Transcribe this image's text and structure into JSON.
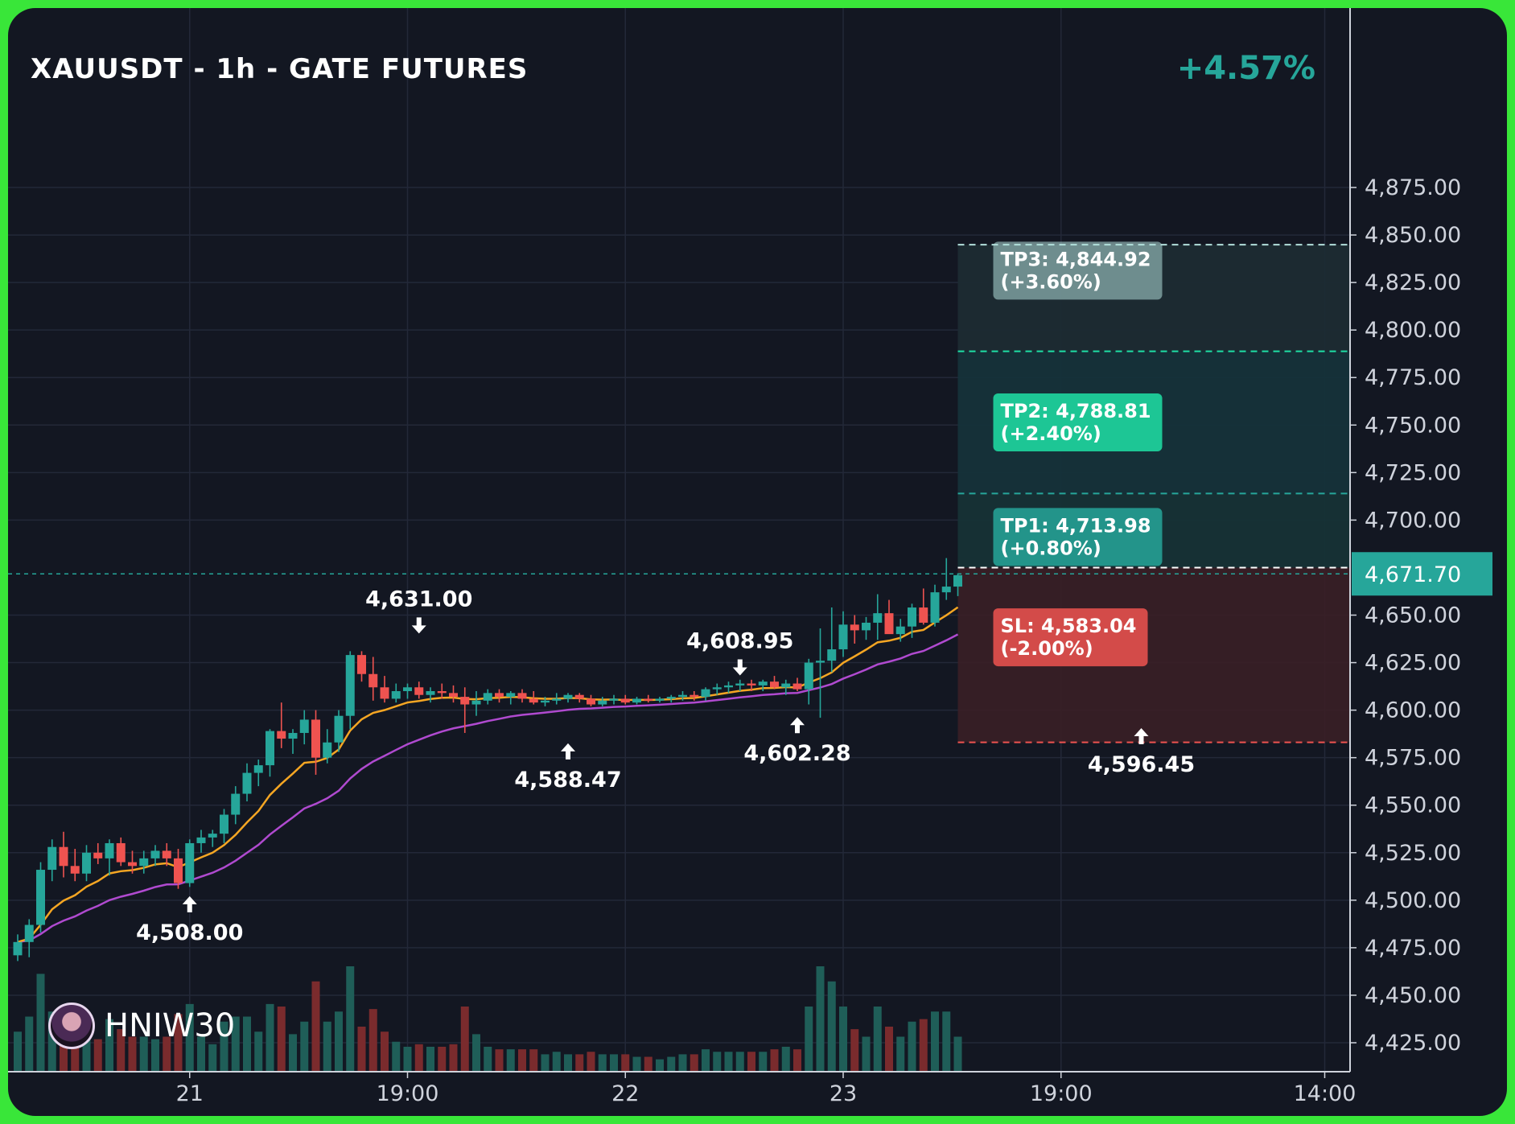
{
  "header": {
    "title": "XAUUSDT - 1h - GATE FUTURES",
    "change_pct": "+4.57%"
  },
  "brand": {
    "name": "HNIW30",
    "avatar_icon": "avatar-icon"
  },
  "colors": {
    "background": "#131722",
    "up": "#26a69a",
    "down": "#ef5350",
    "ema_fast": "#f5a623",
    "ema_slow": "#b04ad0",
    "frame": "#39e639"
  },
  "chart_data": {
    "type": "candlestick",
    "symbol": "XAUUSDT",
    "timeframe": "1h",
    "exchange": "GATE FUTURES",
    "ylim": [
      4415,
      4880
    ],
    "y_ticks": [
      "4,875.00",
      "4,850.00",
      "4,825.00",
      "4,800.00",
      "4,775.00",
      "4,750.00",
      "4,725.00",
      "4,700.00",
      "4,650.00",
      "4,625.00",
      "4,600.00",
      "4,575.00",
      "4,550.00",
      "4,525.00",
      "4,500.00",
      "4,475.00",
      "4,450.00",
      "4,425.00"
    ],
    "y_tick_values": [
      4875,
      4850,
      4825,
      4800,
      4775,
      4750,
      4725,
      4700,
      4650,
      4625,
      4600,
      4575,
      4550,
      4525,
      4500,
      4475,
      4450,
      4425
    ],
    "x_ticks": [
      {
        "label": "21",
        "bar": 15
      },
      {
        "label": "19:00",
        "bar": 34
      },
      {
        "label": "22",
        "bar": 53
      },
      {
        "label": "23",
        "bar": 72
      },
      {
        "label": "19:00",
        "bar": 91
      },
      {
        "label": "14:00",
        "bar": 114
      }
    ],
    "current_price": {
      "label": "4,671.70",
      "value": 4671.7
    },
    "candles": [
      [
        4471,
        4482,
        4468,
        4478
      ],
      [
        4478,
        4490,
        4470,
        4487
      ],
      [
        4487,
        4520,
        4483,
        4516
      ],
      [
        4516,
        4532,
        4510,
        4528
      ],
      [
        4528,
        4536,
        4512,
        4518
      ],
      [
        4518,
        4527,
        4510,
        4514
      ],
      [
        4514,
        4529,
        4510,
        4525
      ],
      [
        4525,
        4530,
        4519,
        4522
      ],
      [
        4522,
        4532,
        4513,
        4530
      ],
      [
        4530,
        4533,
        4518,
        4520
      ],
      [
        4520,
        4526,
        4514,
        4518
      ],
      [
        4518,
        4526,
        4514,
        4522
      ],
      [
        4522,
        4529,
        4518,
        4526
      ],
      [
        4526,
        4530,
        4518,
        4522
      ],
      [
        4522,
        4527,
        4506,
        4509
      ],
      [
        4509,
        4532,
        4507,
        4530
      ],
      [
        4530,
        4537,
        4525,
        4533
      ],
      [
        4533,
        4537,
        4528,
        4535
      ],
      [
        4535,
        4548,
        4530,
        4545
      ],
      [
        4545,
        4560,
        4540,
        4556
      ],
      [
        4556,
        4572,
        4552,
        4567
      ],
      [
        4567,
        4574,
        4560,
        4571
      ],
      [
        4571,
        4590,
        4565,
        4589
      ],
      [
        4589,
        4604,
        4580,
        4585
      ],
      [
        4585,
        4590,
        4577,
        4588
      ],
      [
        4588,
        4600,
        4582,
        4595
      ],
      [
        4595,
        4600,
        4566,
        4575
      ],
      [
        4575,
        4590,
        4572,
        4583
      ],
      [
        4583,
        4600,
        4578,
        4597
      ],
      [
        4597,
        4631,
        4590,
        4629
      ],
      [
        4629,
        4631,
        4615,
        4619
      ],
      [
        4619,
        4628,
        4605,
        4612
      ],
      [
        4612,
        4618,
        4604,
        4606
      ],
      [
        4606,
        4614,
        4604,
        4610
      ],
      [
        4610,
        4614,
        4606,
        4612
      ],
      [
        4612,
        4615,
        4606,
        4608
      ],
      [
        4608,
        4612,
        4604,
        4610
      ],
      [
        4610,
        4614,
        4606,
        4609
      ],
      [
        4609,
        4613,
        4604,
        4607
      ],
      [
        4607,
        4612,
        4588,
        4603
      ],
      [
        4603,
        4610,
        4597,
        4605
      ],
      [
        4605,
        4611,
        4603,
        4609
      ],
      [
        4609,
        4611,
        4604,
        4607
      ],
      [
        4607,
        4610,
        4603,
        4609
      ],
      [
        4609,
        4611,
        4604,
        4606
      ],
      [
        4606,
        4610,
        4603,
        4604
      ],
      [
        4604,
        4607,
        4602,
        4605
      ],
      [
        4605,
        4609,
        4603,
        4606
      ],
      [
        4606,
        4609,
        4604,
        4608
      ],
      [
        4608,
        4609,
        4604,
        4606
      ],
      [
        4606,
        4608,
        4602,
        4603
      ],
      [
        4603,
        4607,
        4602,
        4605
      ],
      [
        4605,
        4608,
        4603,
        4606
      ],
      [
        4606,
        4608,
        4603,
        4604
      ],
      [
        4604,
        4607,
        4603,
        4606
      ],
      [
        4606,
        4608,
        4604,
        4605
      ],
      [
        4605,
        4607,
        4604,
        4606
      ],
      [
        4606,
        4608,
        4604,
        4607
      ],
      [
        4607,
        4610,
        4605,
        4608
      ],
      [
        4608,
        4610,
        4605,
        4607
      ],
      [
        4607,
        4612,
        4605,
        4611
      ],
      [
        4611,
        4614,
        4608,
        4612
      ],
      [
        4612,
        4615,
        4609,
        4613
      ],
      [
        4613,
        4616,
        4610,
        4614
      ],
      [
        4614,
        4616,
        4610,
        4613
      ],
      [
        4613,
        4616,
        4610,
        4615
      ],
      [
        4615,
        4618,
        4611,
        4612
      ],
      [
        4612,
        4616,
        4608,
        4614
      ],
      [
        4614,
        4617,
        4610,
        4611
      ],
      [
        4611,
        4627,
        4603,
        4625
      ],
      [
        4625,
        4643,
        4596,
        4626
      ],
      [
        4626,
        4654,
        4620,
        4632
      ],
      [
        4632,
        4652,
        4628,
        4645
      ],
      [
        4645,
        4650,
        4635,
        4642
      ],
      [
        4642,
        4649,
        4637,
        4646
      ],
      [
        4646,
        4661,
        4637,
        4651
      ],
      [
        4651,
        4658,
        4642,
        4640
      ],
      [
        4640,
        4648,
        4636,
        4644
      ],
      [
        4644,
        4656,
        4638,
        4654
      ],
      [
        4654,
        4664,
        4645,
        4646
      ],
      [
        4646,
        4666,
        4644,
        4662
      ],
      [
        4662,
        4680,
        4658,
        4665
      ],
      [
        4665,
        4672,
        4660,
        4671
      ]
    ],
    "annotations": [
      {
        "label": "4,631.00",
        "bar": 35,
        "price": 4631.0,
        "type": "high"
      },
      {
        "label": "4,508.00",
        "bar": 15,
        "price": 4508.0,
        "type": "low"
      },
      {
        "label": "4,588.47",
        "bar": 48,
        "price": 4588.47,
        "type": "low"
      },
      {
        "label": "4,608.95",
        "bar": 63,
        "price": 4608.95,
        "type": "high"
      },
      {
        "label": "4,602.28",
        "bar": 68,
        "price": 4602.28,
        "type": "low"
      },
      {
        "label": "4,596.45",
        "bar": 98,
        "price": 4596.45,
        "type": "low"
      }
    ],
    "levels": [
      {
        "name": "TP3",
        "label": "TP3: 4,844.92",
        "pct": "(+3.60%)",
        "value": 4844.92,
        "color": "#b2dfdb"
      },
      {
        "name": "TP2",
        "label": "TP2: 4,788.81",
        "pct": "(+2.40%)",
        "value": 4788.81,
        "color": "#1ee0a6"
      },
      {
        "name": "TP1",
        "label": "TP1: 4,713.98",
        "pct": "(+0.80%)",
        "value": 4713.98,
        "color": "#26a69a"
      },
      {
        "name": "SL",
        "label": "SL: 4,583.04",
        "pct": "(-2.00%)",
        "value": 4583.04,
        "color": "#ef5350"
      }
    ],
    "entry_value": 4675.0,
    "series": [
      {
        "name": "EMA fast",
        "color": "#f5a623"
      },
      {
        "name": "EMA slow",
        "color": "#b04ad0"
      }
    ]
  }
}
